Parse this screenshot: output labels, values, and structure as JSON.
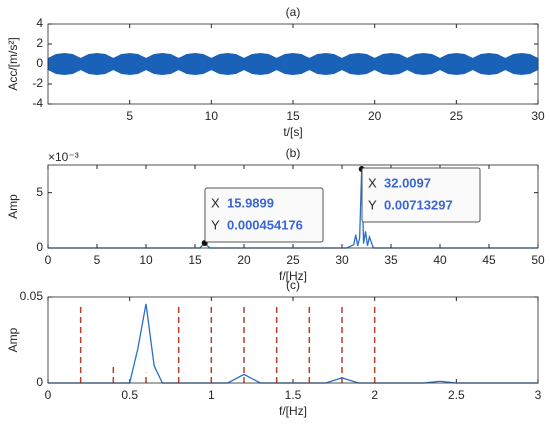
{
  "chart_data": [
    {
      "type": "area",
      "title": "(a)",
      "xlabel": "t/[s]",
      "ylabel": "Acc/[m/s²]",
      "xlim": [
        0,
        30
      ],
      "xticks": [
        5,
        10,
        15,
        20,
        25,
        30
      ],
      "ylim": [
        -4,
        4
      ],
      "yticks": [
        -4,
        -2,
        0,
        2,
        4
      ],
      "x": [
        0,
        0.5,
        1,
        1.5,
        2,
        2.5,
        3,
        3.5,
        4,
        4.5,
        5,
        5.5,
        6,
        6.5,
        7,
        7.5,
        8,
        8.5,
        9,
        9.5,
        10,
        10.5,
        11,
        11.5,
        12,
        12.5,
        13,
        13.5,
        14,
        14.5,
        15,
        15.5,
        16,
        16.5,
        17,
        17.5,
        18,
        18.5,
        19,
        19.5,
        20,
        20.5,
        21,
        21.5,
        22,
        22.5,
        23,
        23.5,
        24,
        24.5,
        25,
        25.5,
        26,
        26.5,
        27,
        27.5,
        28,
        28.5,
        29,
        29.5,
        30
      ],
      "series": [
        {
          "color": "#1a62b8",
          "values": [
            0.55,
            0.95,
            1.05,
            0.95,
            0.55,
            0.95,
            1.05,
            0.95,
            0.55,
            0.95,
            1.05,
            0.95,
            0.55,
            0.95,
            1.05,
            0.95,
            0.55,
            0.95,
            1.05,
            0.95,
            0.55,
            0.95,
            1.05,
            0.95,
            0.55,
            0.95,
            1.05,
            0.95,
            0.55,
            0.95,
            1.05,
            0.95,
            0.55,
            0.95,
            1.05,
            0.95,
            0.55,
            0.95,
            1.05,
            0.95,
            0.55,
            0.95,
            1.05,
            0.95,
            0.55,
            0.95,
            1.05,
            0.95,
            0.55,
            0.95,
            1.05,
            0.95,
            0.55,
            0.95,
            1.05,
            0.95,
            0.55,
            0.95,
            1.05,
            0.95,
            0.55
          ]
        },
        {
          "color": "#1a62b8",
          "values": [
            -0.55,
            -0.95,
            -1.05,
            -0.95,
            -0.55,
            -0.95,
            -1.05,
            -0.95,
            -0.55,
            -0.95,
            -1.05,
            -0.95,
            -0.55,
            -0.95,
            -1.05,
            -0.95,
            -0.55,
            -0.95,
            -1.05,
            -0.95,
            -0.55,
            -0.95,
            -1.05,
            -0.95,
            -0.55,
            -0.95,
            -1.05,
            -0.95,
            -0.55,
            -0.95,
            -1.05,
            -0.95,
            -0.55,
            -0.95,
            -1.05,
            -0.95,
            -0.55,
            -0.95,
            -1.05,
            -0.95,
            -0.55,
            -0.95,
            -1.05,
            -0.95,
            -0.55,
            -0.95,
            -1.05,
            -0.95,
            -0.55,
            -0.95,
            -1.05,
            -0.95,
            -0.55,
            -0.95,
            -1.05,
            -0.95,
            -0.55,
            -0.95,
            -1.05,
            -0.95,
            -0.55
          ]
        }
      ]
    },
    {
      "type": "line",
      "title": "(b)",
      "xlabel": "f/[Hz]",
      "ylabel": "Amp",
      "y_exponent_label": "×10⁻³",
      "xlim": [
        0,
        50
      ],
      "xticks": [
        0,
        5,
        10,
        15,
        20,
        25,
        30,
        35,
        40,
        45,
        50
      ],
      "ylim": [
        0,
        0.0075
      ],
      "yticks": [
        0,
        {
          "value": 0.005,
          "label": "5"
        }
      ],
      "x": [
        0,
        15.5,
        15.9899,
        16.5,
        30.5,
        31.2,
        31.4,
        31.6,
        31.8,
        32.0097,
        32.2,
        32.4,
        32.6,
        32.8,
        33.2,
        50
      ],
      "series": [
        {
          "color": "#2a6fc9",
          "values": [
            0,
            0,
            0.000454176,
            0,
            0,
            0.0003,
            0.0012,
            0.0002,
            0.0009,
            0.00713297,
            0.0004,
            0.0015,
            0.0002,
            0.001,
            0,
            0
          ]
        }
      ],
      "datatip_labels": [
        "X",
        "Y"
      ],
      "datatips": [
        {
          "x": 15.9899,
          "y": 0.000454176
        },
        {
          "x": 32.0097,
          "y": 0.00713297
        }
      ]
    },
    {
      "type": "line",
      "title": "(c)",
      "xlabel": "f/[Hz]",
      "ylabel": "Amp",
      "xlim": [
        0,
        3
      ],
      "xticks": [
        0,
        0.5,
        1,
        1.5,
        2,
        2.5,
        3
      ],
      "ylim": [
        0,
        0.05
      ],
      "yticks": [
        0,
        0.05
      ],
      "x": [
        0,
        0.5,
        0.55,
        0.6,
        0.65,
        0.7,
        1.1,
        1.2,
        1.3,
        1.7,
        1.8,
        1.9,
        2.3,
        2.4,
        2.5,
        3
      ],
      "series": [
        {
          "color": "#2a6fc9",
          "values": [
            0,
            0,
            0.02,
            0.046,
            0.01,
            0,
            0,
            0.005,
            0,
            0,
            0.003,
            0,
            0,
            0.001,
            0,
            0
          ]
        }
      ],
      "reference_lines": {
        "color": "#b5402a",
        "x": [
          0.2,
          0.4,
          0.6,
          0.8,
          1.0,
          1.2,
          1.4,
          1.6,
          1.8,
          2.0
        ],
        "values": [
          0.046,
          0.01,
          0.006,
          0.046,
          0.046,
          0.046,
          0.046,
          0.046,
          0.046,
          0.046
        ]
      }
    }
  ]
}
